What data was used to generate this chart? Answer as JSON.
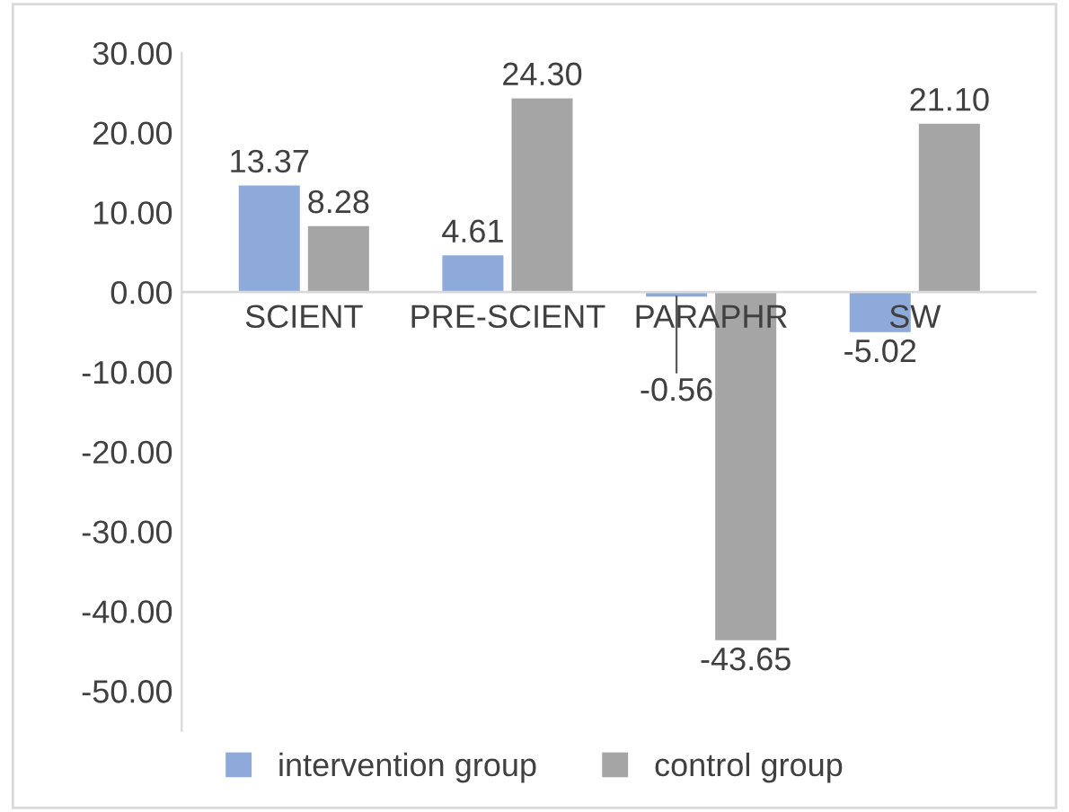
{
  "chart_data": {
    "type": "bar",
    "categories": [
      "SCIENT",
      "PRE-SCIENT",
      "PARAPHR",
      "SW"
    ],
    "series": [
      {
        "name": "intervention group",
        "color": "#8eaadb",
        "values": [
          13.37,
          4.61,
          -0.56,
          -5.02
        ],
        "value_labels": [
          "13.37",
          "4.61",
          "-0.56",
          "-5.02"
        ]
      },
      {
        "name": "control group",
        "color": "#a5a5a5",
        "values": [
          8.28,
          24.3,
          -43.65,
          21.1
        ],
        "value_labels": [
          "8.28",
          "24.30",
          "-43.65",
          "21.10"
        ]
      }
    ],
    "ylim": [
      -55,
      30
    ],
    "yticks": [
      {
        "value": 30,
        "label": "30.00"
      },
      {
        "value": 20,
        "label": "20.00"
      },
      {
        "value": 10,
        "label": "10.00"
      },
      {
        "value": 0,
        "label": "0.00"
      },
      {
        "value": -10,
        "label": "-10.00"
      },
      {
        "value": -20,
        "label": "-20.00"
      },
      {
        "value": -30,
        "label": "-30.00"
      },
      {
        "value": -40,
        "label": "-40.00"
      },
      {
        "value": -50,
        "label": "-50.00"
      }
    ],
    "grid": false,
    "legend": "bottom"
  }
}
